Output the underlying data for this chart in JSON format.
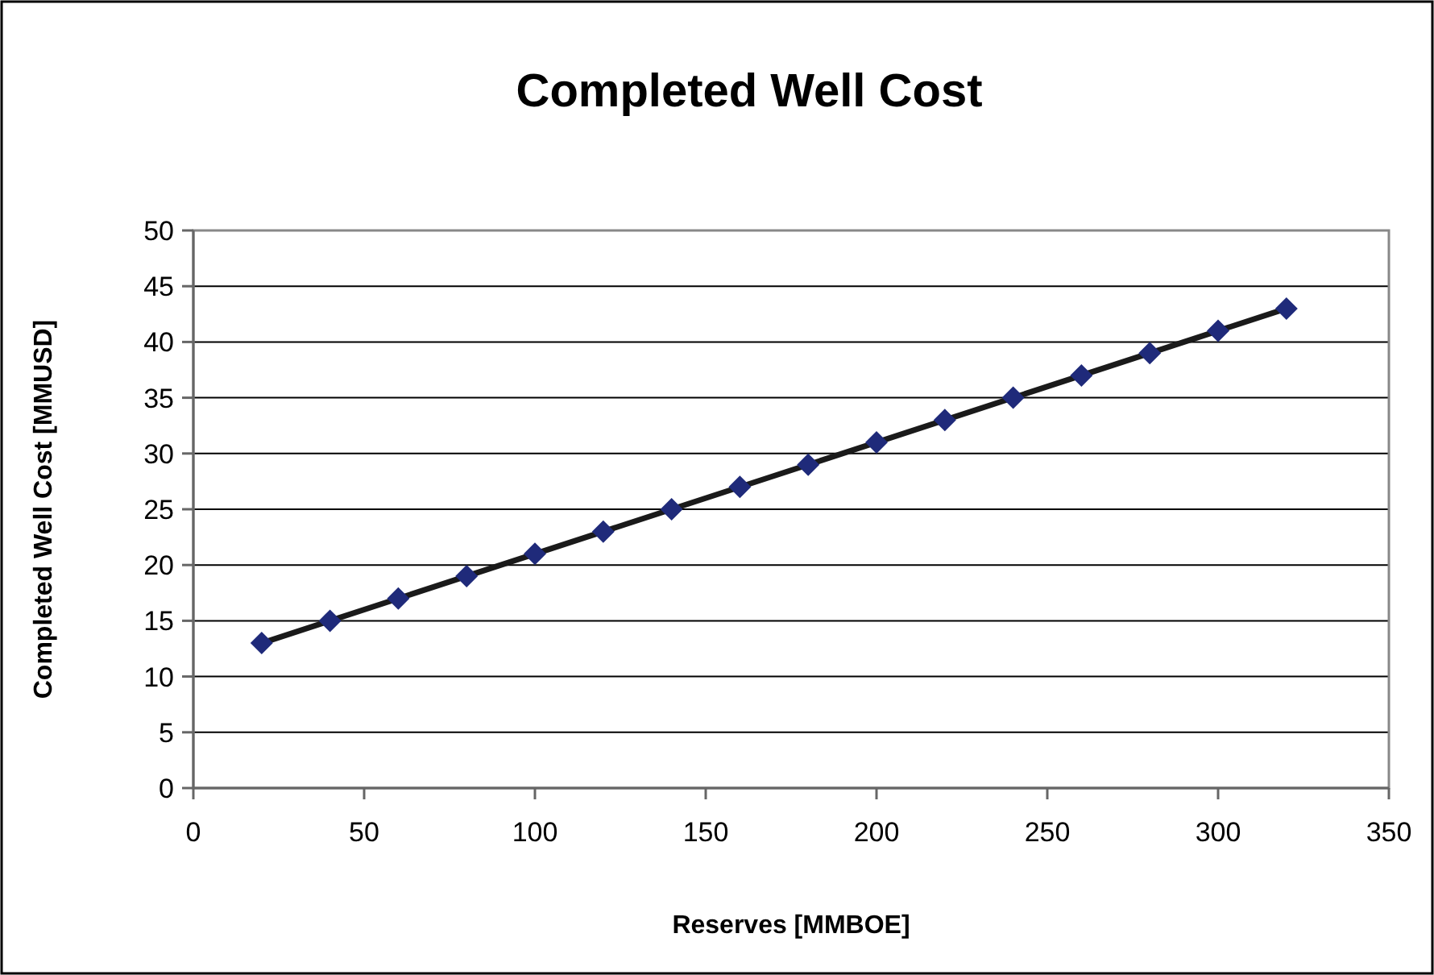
{
  "chart_data": {
    "type": "scatter",
    "title": "Completed Well Cost",
    "xlabel": "Reserves [MMBOE]",
    "ylabel": "Completed Well Cost [MMUSD]",
    "x": [
      20,
      40,
      60,
      80,
      100,
      120,
      140,
      160,
      180,
      200,
      220,
      240,
      260,
      280,
      300,
      320
    ],
    "series": [
      {
        "color": "#1f2a7a",
        "values": [
          13,
          15,
          17,
          19,
          21,
          23,
          25,
          27,
          29,
          31,
          33,
          35,
          37,
          39,
          41,
          43
        ]
      },
      {
        "type": "line",
        "color": "#1a1a1a",
        "x": [
          20,
          320
        ],
        "values": [
          13,
          43
        ],
        "marker": "none"
      }
    ],
    "xlim": [
      0,
      350
    ],
    "xticks": [
      0,
      50,
      100,
      150,
      200,
      250,
      300,
      350
    ],
    "ylim": [
      0,
      50
    ],
    "yticks": [
      0,
      5,
      10,
      15,
      20,
      25,
      30,
      35,
      40,
      45,
      50
    ],
    "grid": "y",
    "marker": "diamond",
    "line_style": "solid"
  }
}
